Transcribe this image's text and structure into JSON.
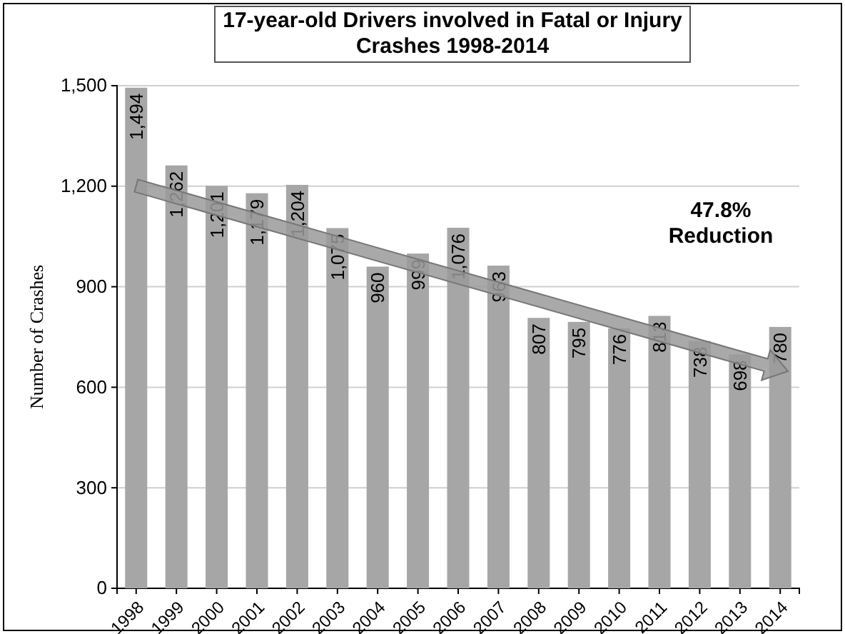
{
  "chart_data": {
    "type": "bar",
    "title": "17-year-old Drivers involved in Fatal or Injury Crashes 1998-2014",
    "ylabel": "Number of Crashes",
    "categories": [
      "1998",
      "1999",
      "2000",
      "2001",
      "2002",
      "2003",
      "2004",
      "2005",
      "2006",
      "2007",
      "2008",
      "2009",
      "2010",
      "2011",
      "2012",
      "2013",
      "2014"
    ],
    "series": [
      {
        "color": "#a6a6a6",
        "values": [
          1494,
          1262,
          1201,
          1179,
          1204,
          1075,
          960,
          999,
          1076,
          963,
          807,
          795,
          776,
          813,
          738,
          698,
          780
        ],
        "value_labels": [
          "1,494",
          "1,262",
          "1,201",
          "1,179",
          "1,204",
          "1,075",
          "960",
          "999",
          "1,076",
          "963",
          "807",
          "795",
          "776",
          "813",
          "738",
          "698",
          "780"
        ]
      }
    ],
    "ylim": [
      0,
      1500
    ],
    "yticks": [
      {
        "value": 0,
        "label": "0"
      },
      {
        "value": 300,
        "label": "300"
      },
      {
        "value": 600,
        "label": "600"
      },
      {
        "value": 900,
        "label": "900"
      },
      {
        "value": 1200,
        "label": "1,200"
      },
      {
        "value": 1500,
        "label": "1,500"
      }
    ],
    "grid": "y",
    "annotations": [
      "47.8% Reduction"
    ]
  }
}
